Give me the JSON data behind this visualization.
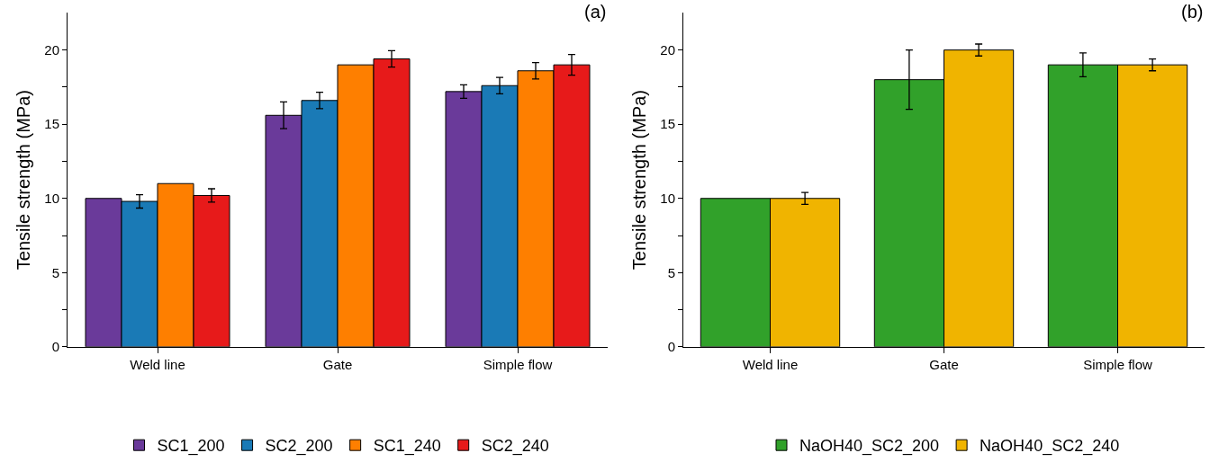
{
  "chart_data": [
    {
      "type": "bar",
      "title": "(a)",
      "ylabel": "Tensile strength (MPa)",
      "categories": [
        "Weld line",
        "Gate",
        "Simple flow"
      ],
      "series": [
        {
          "name": "SC1_200",
          "color": "#6a3a9a",
          "values": [
            10,
            15.6,
            17.2
          ],
          "errors": [
            null,
            0.9,
            0.45
          ]
        },
        {
          "name": "SC2_200",
          "color": "#1a7ab6",
          "values": [
            9.8,
            16.6,
            17.6
          ],
          "errors": [
            0.45,
            0.55,
            0.55
          ]
        },
        {
          "name": "SC1_240",
          "color": "#fe7f00",
          "values": [
            11,
            19.0,
            18.6
          ],
          "errors": [
            null,
            null,
            0.55
          ]
        },
        {
          "name": "SC2_240",
          "color": "#e71a1a",
          "values": [
            10.2,
            19.4,
            19.0
          ],
          "errors": [
            0.45,
            0.55,
            0.7
          ]
        }
      ],
      "ylim": [
        0,
        22.5
      ],
      "yticks": [
        0,
        {
          "value": 2.5,
          "label": null
        },
        5,
        {
          "value": 7.5,
          "label": null
        },
        10,
        {
          "value": 12.5,
          "label": null
        },
        15,
        {
          "value": 17.5,
          "label": null
        },
        20
      ],
      "legend": "bottom"
    },
    {
      "type": "bar",
      "title": "(b)",
      "ylabel": "Tensile strength (MPa)",
      "categories": [
        "Weld line",
        "Gate",
        "Simple flow"
      ],
      "series": [
        {
          "name": "NaOH40_SC2_200",
          "color": "#31a12a",
          "values": [
            10,
            18,
            19
          ],
          "errors": [
            null,
            2,
            0.8
          ]
        },
        {
          "name": "NaOH40_SC2_240",
          "color": "#f0b400",
          "values": [
            10,
            20,
            19
          ],
          "errors": [
            0.4,
            0.4,
            0.4
          ]
        }
      ],
      "ylim": [
        0,
        22.5
      ],
      "yticks": [
        0,
        {
          "value": 2.5,
          "label": null
        },
        5,
        {
          "value": 7.5,
          "label": null
        },
        10,
        {
          "value": 12.5,
          "label": null
        },
        15,
        {
          "value": 17.5,
          "label": null
        },
        20
      ],
      "legend": "bottom"
    }
  ]
}
